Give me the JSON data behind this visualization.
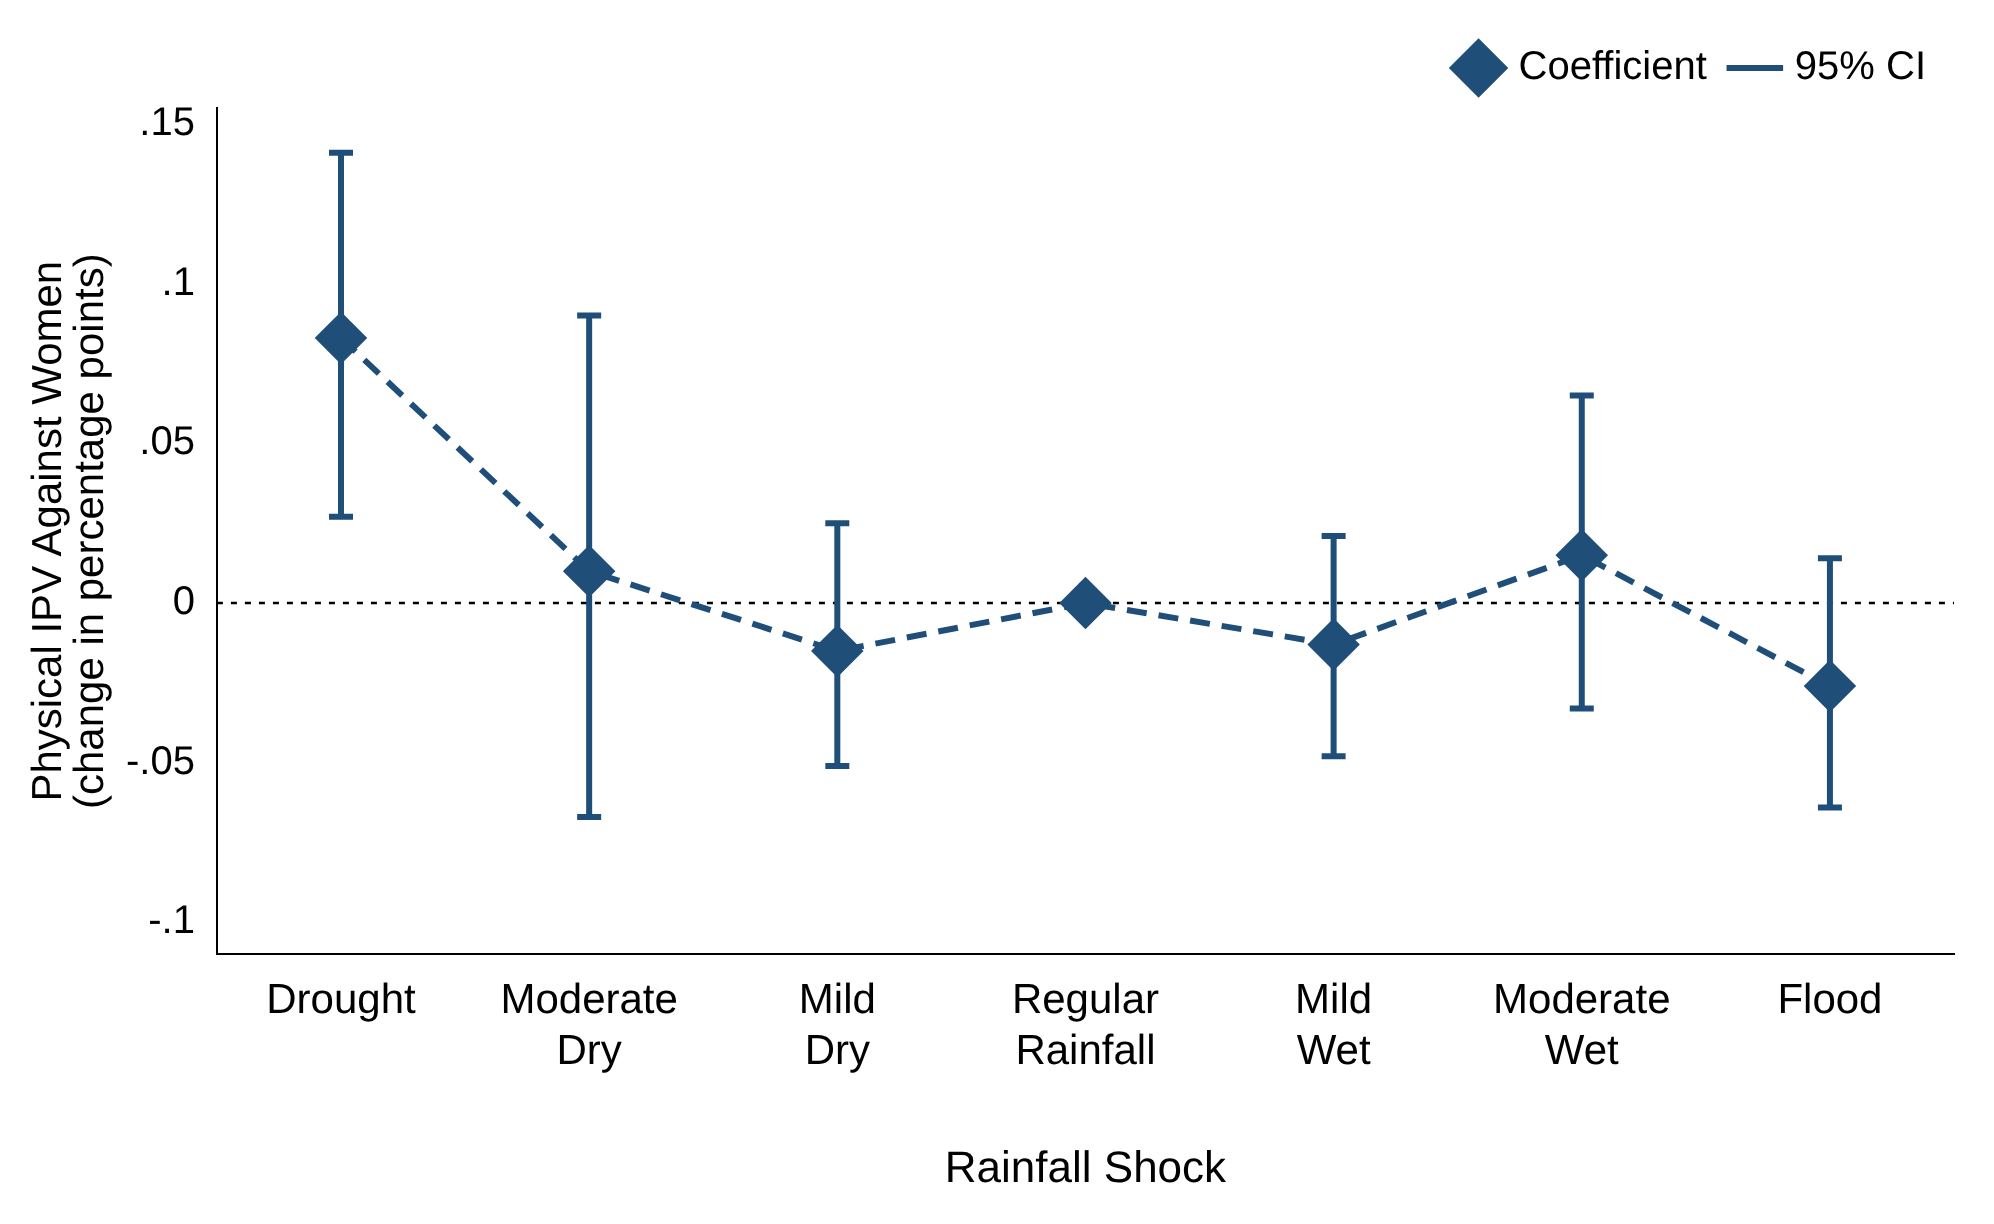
{
  "chart_data": {
    "type": "line",
    "xlabel": "Rainfall Shock",
    "ylabel": "Physical IPV Against Women\n(change in percentage points)",
    "categories": [
      "Drought",
      "Moderate Dry",
      "Mild Dry",
      "Regular Rainfall",
      "Mild Wet",
      "Moderate Wet",
      "Flood"
    ],
    "series": [
      {
        "name": "Coefficient",
        "color": "#1f4e79",
        "values": [
          0.083,
          0.01,
          -0.015,
          0,
          -0.013,
          0.015,
          -0.026
        ],
        "errors": [
          [
            0.027,
            0.141
          ],
          [
            -0.067,
            0.09
          ],
          [
            -0.051,
            0.025
          ],
          null,
          [
            -0.048,
            0.021
          ],
          [
            -0.033,
            0.065
          ],
          [
            -0.064,
            0.014
          ]
        ]
      }
    ],
    "annotations": [
      "95% CI"
    ],
    "ylim": [
      -0.11,
      0.155
    ],
    "yticks": [
      {
        "value": -0.1,
        "label": "-.1"
      },
      {
        "value": -0.05,
        "label": "-.05"
      },
      {
        "value": 0,
        "label": "0"
      },
      {
        "value": 0.05,
        "label": ".05"
      },
      {
        "value": 0.1,
        "label": ".1"
      },
      {
        "value": 0.15,
        "label": ".15"
      }
    ],
    "ref_lines": [
      {
        "axis": "y",
        "value": 0,
        "color": "#000000",
        "line_style": "dotted"
      }
    ],
    "grid": false,
    "legend": "top right",
    "marker": "diamond",
    "line_style": "dashed"
  }
}
